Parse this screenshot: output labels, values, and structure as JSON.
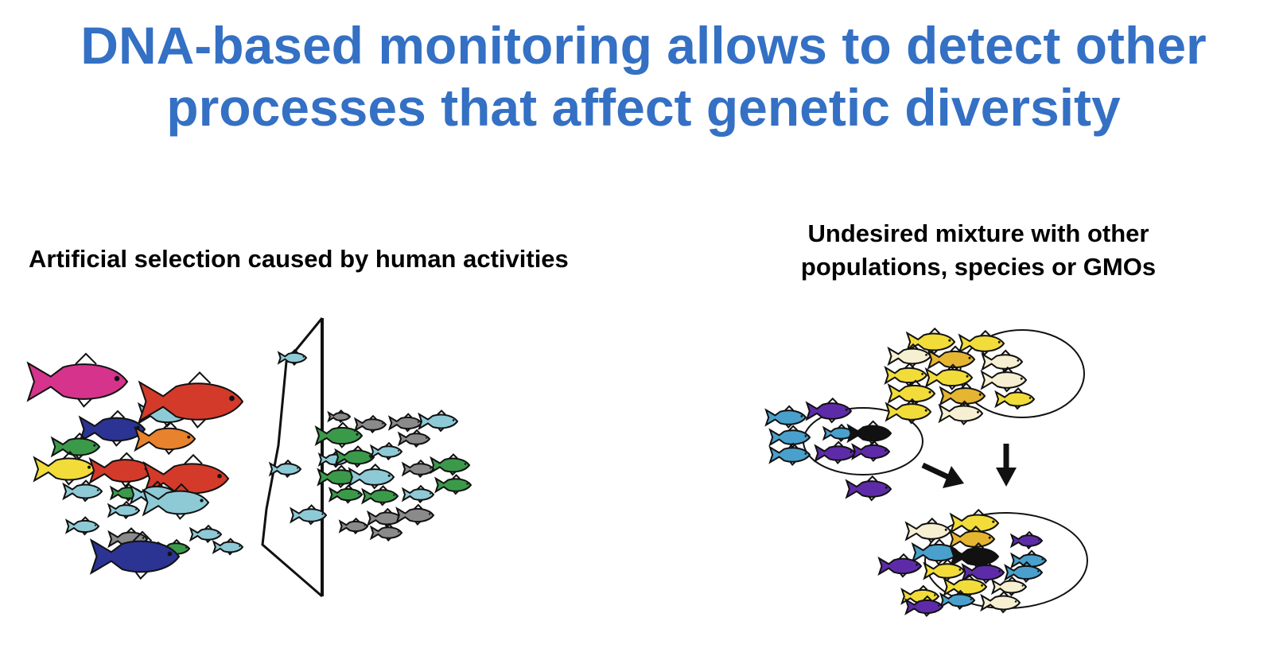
{
  "slide": {
    "title_line1": "DNA-based monitoring allows to detect other",
    "title_line2": "processes that affect genetic diversity",
    "left_caption": "Artificial selection caused by human activities",
    "right_caption_line1": "Undesired mixture with other",
    "right_caption_line2": "populations, species or GMOs"
  },
  "colors": {
    "title": "#3470c4",
    "magenta": "#d6338c",
    "red": "#d43a2a",
    "navy": "#2b3393",
    "orange": "#e8822c",
    "green": "#3a9a4a",
    "yellow": "#f2dc3a",
    "light_blue": "#8ecad6",
    "gray": "#8a8a8a",
    "purple": "#5e2ba8",
    "sky_blue": "#4aa0cc",
    "black": "#111111",
    "cream": "#f6efd2",
    "gold": "#e5b532"
  }
}
